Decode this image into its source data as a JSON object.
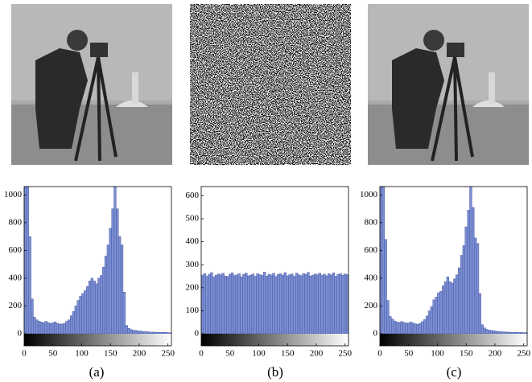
{
  "chart_data": [
    {
      "type": "histogram",
      "color": "#7b8ed2",
      "xlim": [
        0,
        256
      ],
      "xticks": [
        0,
        50,
        100,
        150,
        200,
        250
      ],
      "ylim": [
        0,
        1060
      ],
      "yticks": [
        0,
        200,
        400,
        600,
        800,
        1000
      ],
      "bins": [
        0,
        4,
        8,
        12,
        16,
        20,
        24,
        28,
        32,
        36,
        40,
        44,
        48,
        52,
        56,
        60,
        64,
        68,
        72,
        76,
        80,
        84,
        88,
        92,
        96,
        100,
        104,
        108,
        112,
        116,
        120,
        124,
        128,
        132,
        136,
        140,
        144,
        148,
        152,
        156,
        160,
        164,
        168,
        172,
        176,
        180,
        184,
        188,
        192,
        196,
        200,
        204,
        208,
        212,
        216,
        220,
        224,
        228,
        232,
        236,
        240,
        244,
        248,
        252,
        256
      ],
      "values": [
        1060,
        1060,
        700,
        250,
        120,
        100,
        90,
        85,
        80,
        90,
        80,
        75,
        80,
        85,
        75,
        70,
        70,
        75,
        90,
        100,
        130,
        160,
        200,
        240,
        270,
        290,
        310,
        340,
        380,
        400,
        380,
        360,
        400,
        420,
        480,
        560,
        640,
        760,
        900,
        1060,
        900,
        700,
        640,
        300,
        60,
        40,
        30,
        25,
        25,
        20,
        20,
        15,
        15,
        15,
        12,
        12,
        12,
        10,
        10,
        10,
        10,
        10,
        8,
        8
      ]
    },
    {
      "type": "histogram",
      "color": "#7b8ed2",
      "xlim": [
        0,
        256
      ],
      "xticks": [
        0,
        50,
        100,
        150,
        200,
        250
      ],
      "ylim": [
        0,
        640
      ],
      "yticks": [
        0,
        100,
        200,
        300,
        400,
        500,
        600
      ],
      "bins": [
        0,
        4,
        8,
        12,
        16,
        20,
        24,
        28,
        32,
        36,
        40,
        44,
        48,
        52,
        56,
        60,
        64,
        68,
        72,
        76,
        80,
        84,
        88,
        92,
        96,
        100,
        104,
        108,
        112,
        116,
        120,
        124,
        128,
        132,
        136,
        140,
        144,
        148,
        152,
        156,
        160,
        164,
        168,
        172,
        176,
        180,
        184,
        188,
        192,
        196,
        200,
        204,
        208,
        212,
        216,
        220,
        224,
        228,
        232,
        236,
        240,
        244,
        248,
        252,
        256
      ],
      "values": [
        255,
        262,
        250,
        258,
        266,
        248,
        254,
        260,
        257,
        263,
        251,
        249,
        259,
        265,
        253,
        256,
        261,
        247,
        258,
        264,
        252,
        255,
        260,
        250,
        262,
        257,
        254,
        268,
        251,
        259,
        256,
        263,
        249,
        258,
        261,
        255,
        266,
        252,
        257,
        260,
        250,
        264,
        256,
        253,
        262,
        258,
        267,
        251,
        255,
        260,
        257,
        263,
        254,
        259,
        252,
        261,
        256,
        265,
        250,
        258,
        262,
        255,
        260,
        257
      ]
    },
    {
      "type": "histogram",
      "color": "#7b8ed2",
      "xlim": [
        0,
        256
      ],
      "xticks": [
        0,
        50,
        100,
        150,
        200,
        250
      ],
      "ylim": [
        0,
        1060
      ],
      "yticks": [
        0,
        200,
        400,
        600,
        800,
        1000
      ],
      "bins": [
        0,
        4,
        8,
        12,
        16,
        20,
        24,
        28,
        32,
        36,
        40,
        44,
        48,
        52,
        56,
        60,
        64,
        68,
        72,
        76,
        80,
        84,
        88,
        92,
        96,
        100,
        104,
        108,
        112,
        116,
        120,
        124,
        128,
        132,
        136,
        140,
        144,
        148,
        152,
        156,
        160,
        164,
        168,
        172,
        176,
        180,
        184,
        188,
        192,
        196,
        200,
        204,
        208,
        212,
        216,
        220,
        224,
        228,
        232,
        236,
        240,
        244,
        248,
        252,
        256
      ],
      "values": [
        1060,
        1060,
        680,
        240,
        125,
        105,
        92,
        84,
        82,
        88,
        82,
        77,
        78,
        84,
        77,
        72,
        68,
        76,
        88,
        102,
        128,
        165,
        195,
        245,
        265,
        295,
        305,
        345,
        375,
        410,
        375,
        365,
        395,
        425,
        475,
        565,
        635,
        770,
        890,
        1060,
        910,
        690,
        650,
        290,
        65,
        42,
        32,
        26,
        24,
        21,
        19,
        16,
        15,
        14,
        13,
        12,
        11,
        10,
        10,
        11,
        9,
        10,
        8,
        9
      ]
    }
  ],
  "captions": [
    "(a)",
    "(b)",
    "(c)"
  ]
}
